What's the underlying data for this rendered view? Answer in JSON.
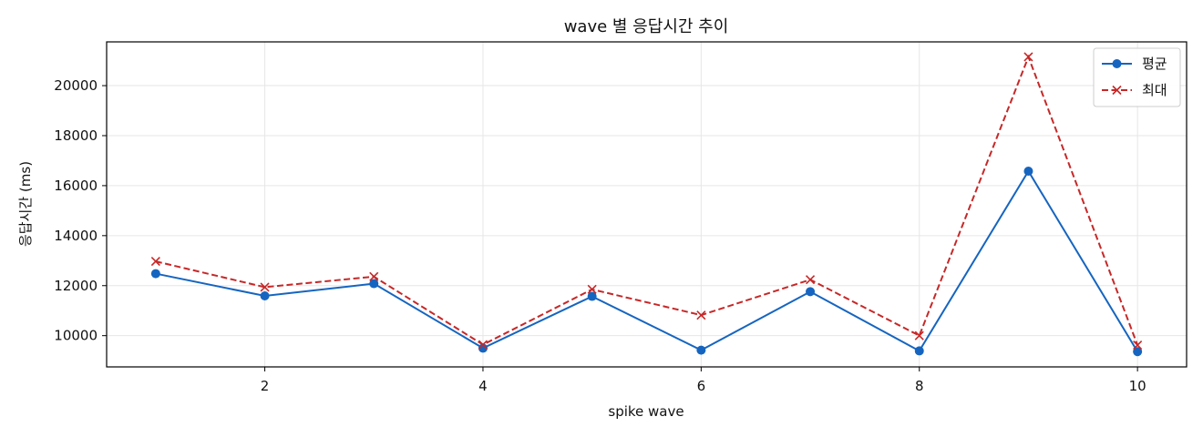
{
  "chart_data": {
    "type": "line",
    "title": "wave 별 응답시간 추이",
    "xlabel": "spike wave",
    "ylabel": "응답시간 (ms)",
    "x": [
      1,
      2,
      3,
      4,
      5,
      6,
      7,
      8,
      9,
      10
    ],
    "xlim": [
      0.55,
      10.45
    ],
    "ylim": [
      8750,
      21750
    ],
    "xticks": [
      2,
      4,
      6,
      8,
      10
    ],
    "yticks": [
      10000,
      12000,
      14000,
      16000,
      18000,
      20000
    ],
    "grid": true,
    "legend_position": "top-right",
    "series": [
      {
        "name": "평균",
        "values": [
          12480,
          11590,
          12080,
          9500,
          11570,
          9420,
          11760,
          9390,
          16580,
          9360
        ],
        "color": "#1565c0",
        "line_style": "solid",
        "marker": "circle"
      },
      {
        "name": "최대",
        "values": [
          12970,
          11940,
          12360,
          9640,
          11850,
          10820,
          12240,
          10000,
          21150,
          9620
        ],
        "color": "#c62828",
        "line_style": "dashed",
        "marker": "x"
      }
    ]
  }
}
